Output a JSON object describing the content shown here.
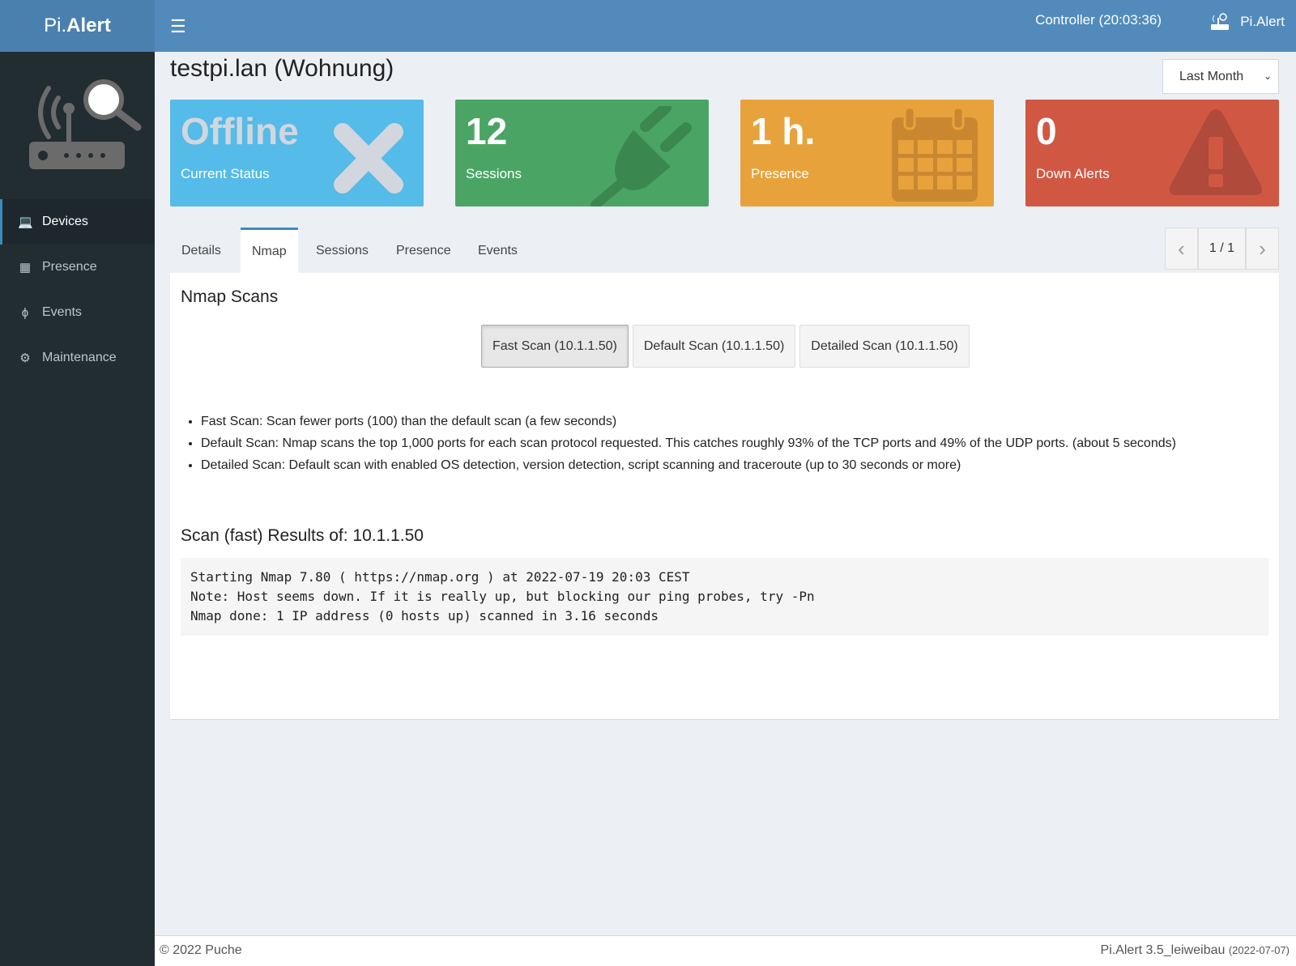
{
  "header": {
    "logo_light": "Pi.",
    "logo_bold": "Alert",
    "menu_icon": "hamburger-icon",
    "controller": "Controller (20:03:36)",
    "brand": "Pi.Alert"
  },
  "sidebar": {
    "items": [
      {
        "label": "Devices",
        "icon": "laptop-icon",
        "active": true
      },
      {
        "label": "Presence",
        "icon": "calendar-icon"
      },
      {
        "label": "Events",
        "icon": "bolt-icon"
      },
      {
        "label": "Maintenance",
        "icon": "gear-icon"
      }
    ]
  },
  "page": {
    "title": "testpi.lan (Wohnung)",
    "period": "Last Month"
  },
  "cards": [
    {
      "value": "Offline",
      "label": "Current Status",
      "color": "#55bbe8",
      "icon": "x-icon"
    },
    {
      "value": "12",
      "label": "Sessions",
      "color": "#4aa564",
      "icon": "plug-icon"
    },
    {
      "value": "1 h.",
      "label": "Presence",
      "color": "#e8a23c",
      "icon": "calendar-icon"
    },
    {
      "value": "0",
      "label": "Down Alerts",
      "color": "#d05843",
      "icon": "warning-icon"
    }
  ],
  "tabs": [
    {
      "label": "Details"
    },
    {
      "label": "Nmap",
      "active": true
    },
    {
      "label": "Sessions"
    },
    {
      "label": "Presence"
    },
    {
      "label": "Events"
    }
  ],
  "pager": {
    "prev": "‹",
    "page": "1 / 1",
    "next": "›"
  },
  "nmap": {
    "heading": "Nmap Scans",
    "buttons": [
      "Fast Scan (10.1.1.50)",
      "Default Scan (10.1.1.50)",
      "Detailed Scan (10.1.1.50)"
    ],
    "notes": [
      "Fast Scan: Scan fewer ports (100) than the default scan (a few seconds)",
      "Default Scan: Nmap scans the top 1,000 ports for each scan protocol requested. This catches roughly 93% of the TCP ports and 49% of the UDP ports. (about 5 seconds)",
      "Detailed Scan: Default scan with enabled OS detection, version detection, script scanning and traceroute (up to 30 seconds or more)"
    ],
    "results_heading": "Scan (fast) Results of: 10.1.1.50",
    "output": "Starting Nmap 7.80 ( https://nmap.org ) at 2022-07-19 20:03 CEST\nNote: Host seems down. If it is really up, but blocking our ping probes, try -Pn\nNmap done: 1 IP address (0 hosts up) scanned in 3.16 seconds"
  },
  "footer": {
    "copyright": "© 2022 Puche",
    "version": "Pi.Alert  3.5_leiweibau",
    "date": "(2022-07-07)"
  }
}
